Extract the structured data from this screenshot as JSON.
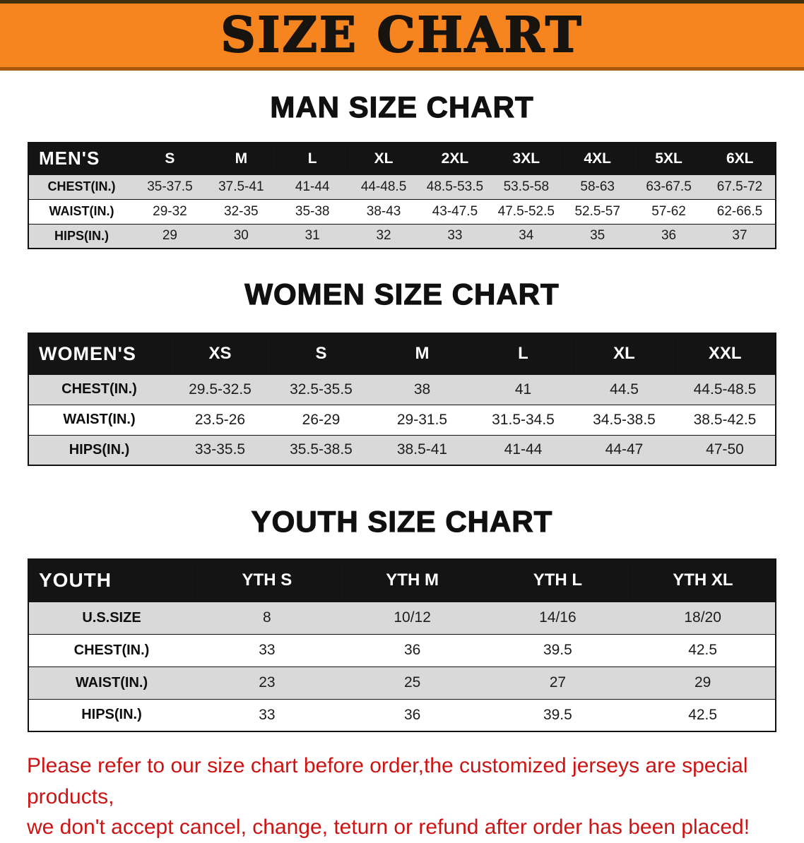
{
  "banner": {
    "title": "SIZE CHART",
    "bg_color": "#f6851f",
    "text_color": "#17130e"
  },
  "colors": {
    "table_header_bg": "#141414",
    "row_shaded": "#d9d9d9",
    "row_plain": "#ffffff",
    "footer_text": "#cc1414"
  },
  "sections": [
    {
      "id": "mens",
      "title": "MAN SIZE CHART",
      "corner_label": "MEN'S",
      "columns": [
        "S",
        "M",
        "L",
        "XL",
        "2XL",
        "3XL",
        "4XL",
        "5XL",
        "6XL"
      ],
      "rows": [
        {
          "label": "CHEST(IN.)",
          "values": [
            "35-37.5",
            "37.5-41",
            "41-44",
            "44-48.5",
            "48.5-53.5",
            "53.5-58",
            "58-63",
            "63-67.5",
            "67.5-72"
          ]
        },
        {
          "label": "WAIST(IN.)",
          "values": [
            "29-32",
            "32-35",
            "35-38",
            "38-43",
            "43-47.5",
            "47.5-52.5",
            "52.5-57",
            "57-62",
            "62-66.5"
          ]
        },
        {
          "label": "HIPS(IN.)",
          "values": [
            "29",
            "30",
            "31",
            "32",
            "33",
            "34",
            "35",
            "36",
            "37"
          ]
        }
      ]
    },
    {
      "id": "womens",
      "title": "WOMEN SIZE CHART",
      "corner_label": "WOMEN'S",
      "columns": [
        "XS",
        "S",
        "M",
        "L",
        "XL",
        "XXL"
      ],
      "rows": [
        {
          "label": "CHEST(IN.)",
          "values": [
            "29.5-32.5",
            "32.5-35.5",
            "38",
            "41",
            "44.5",
            "44.5-48.5"
          ]
        },
        {
          "label": "WAIST(IN.)",
          "values": [
            "23.5-26",
            "26-29",
            "29-31.5",
            "31.5-34.5",
            "34.5-38.5",
            "38.5-42.5"
          ]
        },
        {
          "label": "HIPS(IN.)",
          "values": [
            "33-35.5",
            "35.5-38.5",
            "38.5-41",
            "41-44",
            "44-47",
            "47-50"
          ]
        }
      ]
    },
    {
      "id": "youth",
      "title": "YOUTH SIZE CHART",
      "corner_label": "YOUTH",
      "columns": [
        "YTH S",
        "YTH M",
        "YTH L",
        "YTH XL"
      ],
      "rows": [
        {
          "label": "U.S.SIZE",
          "values": [
            "8",
            "10/12",
            "14/16",
            "18/20"
          ]
        },
        {
          "label": "CHEST(IN.)",
          "values": [
            "33",
            "36",
            "39.5",
            "42.5"
          ]
        },
        {
          "label": "WAIST(IN.)",
          "values": [
            "23",
            "25",
            "27",
            "29"
          ]
        },
        {
          "label": "HIPS(IN.)",
          "values": [
            "33",
            "36",
            "39.5",
            "42.5"
          ]
        }
      ]
    }
  ],
  "footer": {
    "line1": "Please refer to our size chart before order,the customized jerseys are special products,",
    "line2": "we don't accept cancel, change, teturn or refund after order has been placed!"
  }
}
